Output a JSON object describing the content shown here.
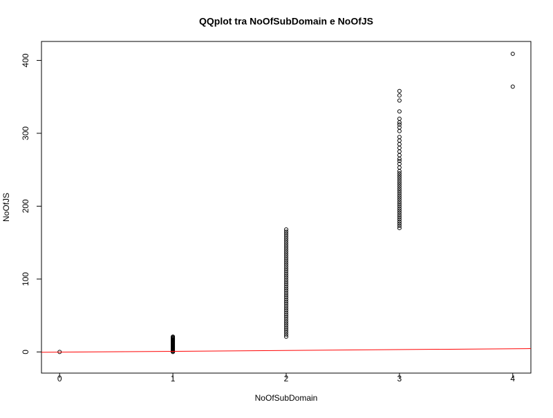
{
  "chart_data": {
    "type": "scatter",
    "title": "QQplot tra NoOfSubDomain e NoOfJS",
    "x_label": "NoOfSubDomain",
    "y_label": "NoOfJS",
    "xlim": [
      -0.16,
      4.16
    ],
    "ylim": [
      -29,
      426
    ],
    "xticks": [
      0,
      1,
      2,
      3,
      4
    ],
    "yticks": [
      0,
      100,
      200,
      300,
      400
    ],
    "point_color": "#000000",
    "columns": [
      {
        "x": 0,
        "values": [
          0
        ]
      },
      {
        "x": 1,
        "values": [
          0,
          1,
          2,
          3,
          4,
          5,
          6,
          7,
          8,
          9,
          10,
          11,
          12,
          13,
          14,
          15,
          16,
          17,
          18,
          19,
          20,
          21
        ]
      },
      {
        "x": 2,
        "values": [
          21,
          24,
          27,
          30,
          33,
          36,
          39,
          42,
          45,
          48,
          51,
          54,
          57,
          60,
          63,
          66,
          69,
          72,
          75,
          78,
          81,
          84,
          87,
          90,
          93,
          96,
          99,
          102,
          105,
          108,
          111,
          114,
          117,
          120,
          123,
          126,
          129,
          132,
          135,
          138,
          141,
          144,
          147,
          150,
          153,
          156,
          159,
          162,
          165,
          168
        ]
      },
      {
        "x": 3,
        "values": [
          170,
          173,
          176,
          179,
          182,
          185,
          188,
          191,
          194,
          197,
          200,
          203,
          206,
          209,
          212,
          215,
          218,
          221,
          224,
          227,
          230,
          233,
          236,
          239,
          242,
          245,
          248,
          253,
          258,
          262,
          265,
          270,
          275,
          280,
          285,
          290,
          295,
          303,
          308,
          312,
          315,
          320,
          330,
          345,
          352,
          358
        ]
      },
      {
        "x": 4,
        "values": [
          364,
          409
        ]
      }
    ],
    "reference_line": {
      "color": "#ff0000",
      "x": [
        -0.16,
        4.16
      ],
      "y": [
        -0.5,
        4.6
      ]
    }
  }
}
